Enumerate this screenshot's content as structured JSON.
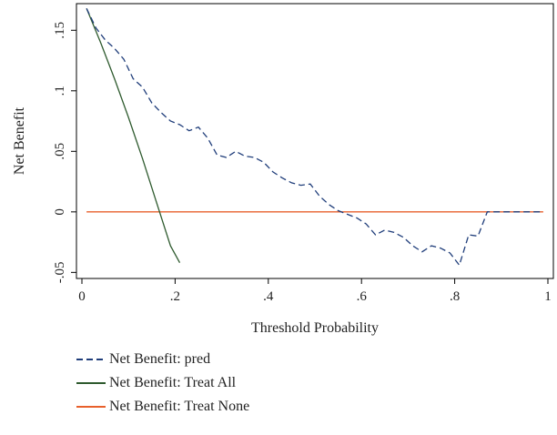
{
  "chart_data": {
    "type": "line",
    "xlabel": "Threshold Probability",
    "ylabel": "Net Benefit",
    "xlim": [
      0,
      1
    ],
    "ylim": [
      -0.055,
      0.172
    ],
    "x_ticks": [
      0,
      0.2,
      0.4,
      0.6,
      0.8,
      1
    ],
    "x_tick_labels": [
      "0",
      ".2",
      ".4",
      ".6",
      ".8",
      "1"
    ],
    "y_ticks": [
      -0.05,
      0,
      0.05,
      0.1,
      0.15
    ],
    "y_tick_labels": [
      "-.05",
      "0",
      ".05",
      ".1",
      ".15"
    ],
    "grid": false,
    "legend_position": "bottom",
    "series": [
      {
        "name": "Net Benefit: pred",
        "color": "#1f3d7a",
        "dash": "dashed",
        "x": [
          0.01,
          0.03,
          0.05,
          0.07,
          0.09,
          0.11,
          0.13,
          0.15,
          0.17,
          0.19,
          0.21,
          0.23,
          0.25,
          0.27,
          0.29,
          0.31,
          0.33,
          0.35,
          0.37,
          0.39,
          0.41,
          0.43,
          0.45,
          0.47,
          0.49,
          0.51,
          0.53,
          0.55,
          0.57,
          0.59,
          0.61,
          0.63,
          0.65,
          0.67,
          0.69,
          0.71,
          0.73,
          0.75,
          0.77,
          0.79,
          0.81,
          0.83,
          0.85,
          0.87,
          0.89,
          0.91,
          0.93,
          0.95,
          0.97,
          0.99
        ],
        "y": [
          0.168,
          0.152,
          0.142,
          0.135,
          0.126,
          0.11,
          0.103,
          0.09,
          0.082,
          0.075,
          0.072,
          0.067,
          0.07,
          0.061,
          0.047,
          0.045,
          0.05,
          0.046,
          0.045,
          0.041,
          0.033,
          0.028,
          0.024,
          0.022,
          0.023,
          0.013,
          0.006,
          0.001,
          -0.002,
          -0.005,
          -0.01,
          -0.019,
          -0.015,
          -0.017,
          -0.021,
          -0.028,
          -0.033,
          -0.028,
          -0.03,
          -0.034,
          -0.044,
          -0.019,
          -0.02,
          0.0,
          0.0,
          0.0,
          0.0,
          0.0,
          0.0,
          0.0
        ]
      },
      {
        "name": "Net Benefit: Treat All",
        "color": "#2e5a2e",
        "dash": "solid",
        "x": [
          0.01,
          0.04,
          0.07,
          0.1,
          0.13,
          0.16,
          0.19,
          0.21
        ],
        "y": [
          0.168,
          0.14,
          0.11,
          0.078,
          0.044,
          0.008,
          -0.028,
          -0.042
        ]
      },
      {
        "name": "Net Benefit: Treat None",
        "color": "#e8602c",
        "dash": "solid",
        "x": [
          0.01,
          0.99
        ],
        "y": [
          0,
          0
        ]
      }
    ]
  }
}
